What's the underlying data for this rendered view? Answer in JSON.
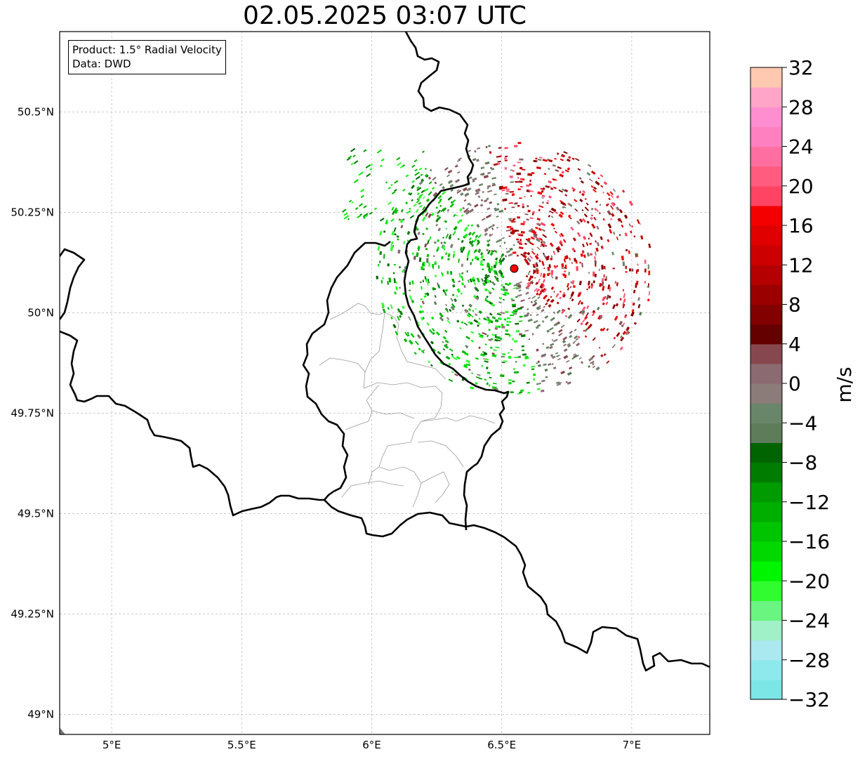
{
  "title": "02.05.2025 03:07 UTC",
  "info": {
    "product": "Product: 1.5° Radial Velocity",
    "data_source": "Data: DWD"
  },
  "map": {
    "lon_range": [
      4.8,
      7.3
    ],
    "lat_range": [
      48.95,
      50.7
    ],
    "x_ticks": [
      {
        "value": 5.0,
        "label": "5°E"
      },
      {
        "value": 5.5,
        "label": "5.5°E"
      },
      {
        "value": 6.0,
        "label": "6°E"
      },
      {
        "value": 6.5,
        "label": "6.5°E"
      },
      {
        "value": 7.0,
        "label": "7°E"
      }
    ],
    "y_ticks": [
      {
        "value": 50.5,
        "label": "50.5°N"
      },
      {
        "value": 50.25,
        "label": "50.25°N"
      },
      {
        "value": 50.0,
        "label": "50°N"
      },
      {
        "value": 49.75,
        "label": "49.75°N"
      },
      {
        "value": 49.5,
        "label": "49.5°N"
      },
      {
        "value": 49.25,
        "label": "49.25°N"
      },
      {
        "value": 49.0,
        "label": "49°N"
      }
    ],
    "gridlines": true,
    "radar_site": {
      "lon": 6.548,
      "lat": 50.11,
      "color": "#ff0000"
    }
  },
  "colorbar": {
    "label": "m/s",
    "min": -32,
    "max": 32,
    "ticks": [
      {
        "value": 32,
        "label": "32"
      },
      {
        "value": 28,
        "label": "28"
      },
      {
        "value": 24,
        "label": "24"
      },
      {
        "value": 20,
        "label": "20"
      },
      {
        "value": 16,
        "label": "16"
      },
      {
        "value": 12,
        "label": "12"
      },
      {
        "value": 8,
        "label": "8"
      },
      {
        "value": 4,
        "label": "4"
      },
      {
        "value": 0,
        "label": "0"
      },
      {
        "value": -4,
        "label": "−4"
      },
      {
        "value": -8,
        "label": "−8"
      },
      {
        "value": -12,
        "label": "−12"
      },
      {
        "value": -16,
        "label": "−16"
      },
      {
        "value": -20,
        "label": "−20"
      },
      {
        "value": -24,
        "label": "−24"
      },
      {
        "value": -28,
        "label": "−28"
      },
      {
        "value": -32,
        "label": "−32"
      }
    ],
    "colors": [
      "#7ce6e6",
      "#8ee9ec",
      "#a9e9ef",
      "#a0f0c8",
      "#6af480",
      "#30fc30",
      "#00f500",
      "#00d800",
      "#00c400",
      "#00ae00",
      "#009b00",
      "#007c00",
      "#006400",
      "#5e7c5a",
      "#6a866a",
      "#8b7b79",
      "#8c6a72",
      "#86484e",
      "#650000",
      "#820000",
      "#9a0000",
      "#b40000",
      "#cc0000",
      "#e00000",
      "#f50000",
      "#ff4463",
      "#ff5c80",
      "#ff6ea0",
      "#ff80c0",
      "#ff8ed0",
      "#ffa6c8",
      "#ffc8b0"
    ]
  }
}
